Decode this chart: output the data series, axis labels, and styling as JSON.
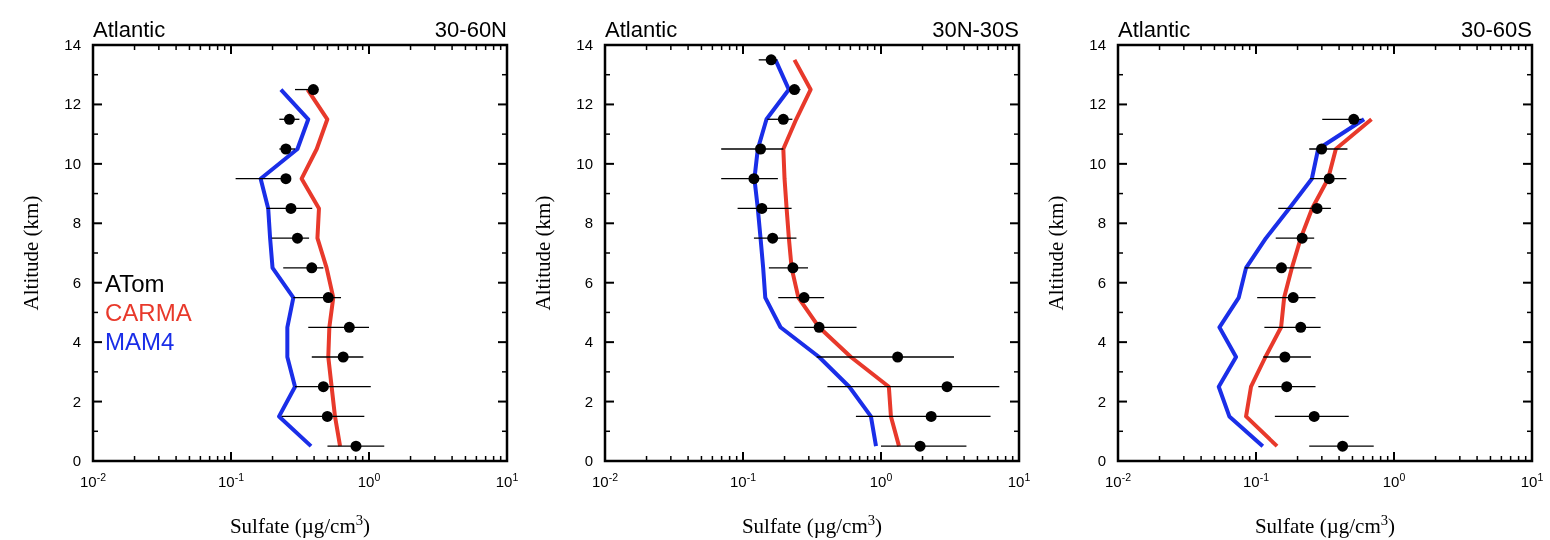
{
  "chart_data": [
    {
      "type": "line",
      "title": "Atlantic",
      "subtitle": "30-60N",
      "xlabel": "Sulfate (µg/cm$^{3}$)",
      "ylabel": "Altitude (km)",
      "log": "x",
      "xlim": [
        0.01,
        10
      ],
      "xticks": [
        {
          "value": 0.01,
          "label": "10$^{-2}$"
        },
        {
          "value": 0.1,
          "label": "10$^{-1}$"
        },
        {
          "value": 1,
          "label": "10$^{0}$"
        },
        {
          "value": 10,
          "label": "10$^{1}$"
        }
      ],
      "ylim": [
        0,
        14
      ],
      "yticks": [
        0,
        2,
        4,
        6,
        8,
        10,
        12,
        14
      ],
      "grid": false,
      "legend": "left",
      "series": [
        {
          "name": "ATom",
          "type": "scatter",
          "marker": "circle",
          "color": "#000000",
          "x": [
            0.805,
            0.499,
            0.467,
            0.65,
            0.72,
            0.507,
            0.385,
            0.303,
            0.272,
            0.25,
            0.25,
            0.265,
            0.395
          ],
          "values": [
            0.5,
            1.5,
            2.5,
            3.5,
            4.5,
            5.5,
            6.5,
            7.5,
            8.5,
            9.5,
            10.5,
            11.5,
            12.5
          ],
          "xerrors": [
            [
              0.5,
              1.29
            ],
            [
              0.233,
              0.925
            ],
            [
              0.291,
              1.03
            ],
            [
              0.385,
              0.91
            ],
            [
              0.363,
              1.0
            ],
            [
              0.283,
              0.627
            ],
            [
              0.239,
              0.467
            ],
            [
              0.197,
              0.368
            ],
            [
              0.181,
              0.388
            ],
            [
              0.108,
              0.27
            ],
            [
              0.224,
              0.291
            ],
            [
              0.224,
              0.313
            ],
            [
              0.291,
              0.43
            ]
          ]
        },
        {
          "name": "CARMA",
          "color": "#e8392b",
          "x": [
            0.617,
            0.567,
            0.536,
            0.507,
            0.516,
            0.551,
            0.493,
            0.423,
            0.434,
            0.325,
            0.418,
            0.499,
            0.359
          ],
          "values": [
            0.5,
            1.5,
            2.5,
            3.5,
            4.5,
            5.5,
            6.5,
            7.5,
            8.5,
            9.5,
            10.5,
            11.5,
            12.5
          ]
        },
        {
          "name": "MAM4",
          "color": "#1a2ee8",
          "x": [
            0.38,
            0.223,
            0.291,
            0.256,
            0.256,
            0.283,
            0.2,
            0.192,
            0.186,
            0.164,
            0.303,
            0.363,
            0.23
          ],
          "values": [
            0.5,
            1.5,
            2.5,
            3.5,
            4.5,
            5.5,
            6.5,
            7.5,
            8.5,
            9.5,
            10.5,
            11.5,
            12.5
          ]
        }
      ]
    },
    {
      "type": "line",
      "title": "Atlantic",
      "subtitle": "30N-30S",
      "xlabel": "Sulfate (µg/cm$^{3}$)",
      "ylabel": "Altitude (km)",
      "log": "x",
      "xlim": [
        0.01,
        10
      ],
      "xticks": [
        {
          "value": 0.01,
          "label": "10$^{-2}$"
        },
        {
          "value": 0.1,
          "label": "10$^{-1}$"
        },
        {
          "value": 1,
          "label": "10$^{0}$"
        },
        {
          "value": 10,
          "label": "10$^{1}$"
        }
      ],
      "ylim": [
        0,
        14
      ],
      "yticks": [
        0,
        2,
        4,
        6,
        8,
        10,
        12,
        14
      ],
      "grid": false,
      "series": [
        {
          "type": "scatter",
          "marker": "circle",
          "color": "#000000",
          "x": [
            1.92,
            2.31,
            3.01,
            1.32,
            0.356,
            0.277,
            0.23,
            0.164,
            0.137,
            0.12,
            0.134,
            0.196,
            0.236,
            0.16
          ],
          "values": [
            0.5,
            1.5,
            2.5,
            3.5,
            4.5,
            5.5,
            6.5,
            7.5,
            8.5,
            9.5,
            10.5,
            11.5,
            12.5,
            13.5
          ],
          "xerrors": [
            [
              1.0,
              4.16
            ],
            [
              0.658,
              6.22
            ],
            [
              0.409,
              7.2
            ],
            [
              0.342,
              3.38
            ],
            [
              0.236,
              0.665
            ],
            [
              0.18,
              0.387
            ],
            [
              0.154,
              0.296
            ],
            [
              0.12,
              0.244
            ],
            [
              0.0914,
              0.225
            ],
            [
              0.0695,
              0.179
            ],
            [
              0.0695,
              0.196
            ],
            [
              0.15,
              0.228
            ],
            [
              0.215,
              0.261
            ],
            [
              0.13,
              0.177
            ]
          ]
        },
        {
          "color": "#e8392b",
          "x": [
            1.35,
            1.18,
            1.14,
            0.605,
            0.356,
            0.252,
            0.225,
            0.215,
            0.207,
            0.2,
            0.196,
            0.243,
            0.309,
            0.236
          ],
          "values": [
            0.5,
            1.5,
            2.5,
            3.5,
            4.5,
            5.5,
            6.5,
            7.5,
            8.5,
            9.5,
            10.5,
            11.5,
            12.5,
            13.5
          ]
        },
        {
          "color": "#1a2ee8",
          "x": [
            0.92,
            0.845,
            0.589,
            0.356,
            0.187,
            0.145,
            0.14,
            0.134,
            0.128,
            0.121,
            0.128,
            0.148,
            0.215,
            0.172
          ],
          "values": [
            0.5,
            1.5,
            2.5,
            3.5,
            4.5,
            5.5,
            6.5,
            7.5,
            8.5,
            9.5,
            10.5,
            11.5,
            12.5,
            13.5
          ]
        }
      ]
    },
    {
      "type": "line",
      "title": "Atlantic",
      "subtitle": "30-60S",
      "xlabel": "Sulfate (µg/cm$^{3}$)",
      "ylabel": "Altitude (km)",
      "log": "x",
      "xlim": [
        0.01,
        10
      ],
      "xticks": [
        {
          "value": 0.01,
          "label": "10$^{-2}$"
        },
        {
          "value": 0.1,
          "label": "10$^{-1}$"
        },
        {
          "value": 1,
          "label": "10$^{0}$"
        },
        {
          "value": 10,
          "label": "10$^{1}$"
        }
      ],
      "ylim": [
        0,
        14
      ],
      "yticks": [
        0,
        2,
        4,
        6,
        8,
        10,
        12,
        14
      ],
      "grid": false,
      "series": [
        {
          "type": "scatter",
          "marker": "circle",
          "color": "#000000",
          "x": [
            0.424,
            0.264,
            0.167,
            0.162,
            0.211,
            0.186,
            0.153,
            0.216,
            0.277,
            0.339,
            0.299,
            0.511
          ],
          "values": [
            0.5,
            1.5,
            2.5,
            3.5,
            4.5,
            5.5,
            6.5,
            7.5,
            8.5,
            9.5,
            10.5,
            11.5
          ],
          "xerrors": [
            [
              0.243,
              0.713
            ],
            [
              0.137,
              0.47
            ],
            [
              0.104,
              0.27
            ],
            [
              0.113,
              0.25
            ],
            [
              0.115,
              0.294
            ],
            [
              0.102,
              0.27
            ],
            [
              0.0832,
              0.253
            ],
            [
              0.139,
              0.264
            ],
            [
              0.145,
              0.349
            ],
            [
              0.246,
              0.452
            ],
            [
              0.243,
              0.46
            ],
            [
              0.302,
              0.581
            ]
          ]
        },
        {
          "color": "#e8392b",
          "x": [
            0.142,
            0.0847,
            0.092,
            0.117,
            0.152,
            0.16,
            0.182,
            0.211,
            0.255,
            0.333,
            0.379,
            0.687
          ],
          "values": [
            0.5,
            1.5,
            2.5,
            3.5,
            4.5,
            5.5,
            6.5,
            7.5,
            8.5,
            9.5,
            10.5,
            11.5
          ]
        },
        {
          "color": "#1a2ee8",
          "x": [
            0.112,
            0.0641,
            0.0537,
            0.0717,
            0.0543,
            0.075,
            0.0847,
            0.118,
            0.174,
            0.254,
            0.282,
            0.607
          ],
          "values": [
            0.5,
            1.5,
            2.5,
            3.5,
            4.5,
            5.5,
            6.5,
            7.5,
            8.5,
            9.5,
            10.5,
            11.5
          ]
        }
      ]
    }
  ]
}
